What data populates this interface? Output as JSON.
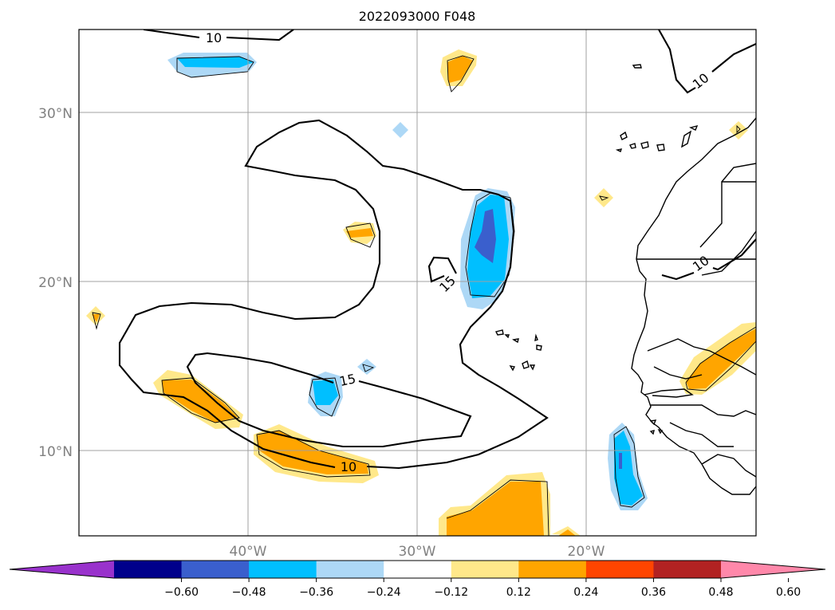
{
  "title": "2022093000 F048",
  "lat_labels": [
    "30°N",
    "20°N",
    "10°N"
  ],
  "lon_labels": [
    "40°W",
    "30°W",
    "20°W"
  ],
  "contour_labels": [
    "10",
    "10",
    "10",
    "10",
    "15",
    "15"
  ],
  "colorbar": {
    "ticks": [
      "−0.60",
      "−0.48",
      "−0.36",
      "−0.24",
      "−0.12",
      "0.12",
      "0.24",
      "0.36",
      "0.48",
      "0.60"
    ],
    "colors": [
      "#9932cc",
      "#00008b",
      "#3a5fcd",
      "#00bfff",
      "#add8f6",
      "#ffffff",
      "#ffe88a",
      "#ffa500",
      "#ff4500",
      "#b22222",
      "#ff88aa"
    ],
    "extend": "both"
  },
  "colors": {
    "light_orange": "#ffe88a",
    "orange": "#ffa500",
    "red_orange": "#ff4500",
    "light_blue": "#add8f6",
    "blue": "#00bfff",
    "royal_blue": "#3a5fcd",
    "grid": "#a0a0a0"
  },
  "map": {
    "lon_range": [
      -50,
      -10
    ],
    "lat_range": [
      5,
      35
    ],
    "grid": true
  }
}
